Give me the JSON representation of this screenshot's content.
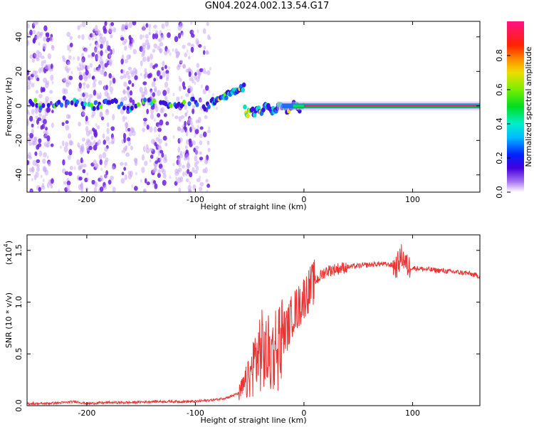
{
  "title": "GN04.2024.002.13.54.G17",
  "colors": {
    "snr_line": "#ee3333",
    "scatter_light": "#c9a6f5",
    "scatter_dark": "#6b1fe0",
    "band_core": "#ee1177"
  },
  "chart_data": [
    {
      "type": "heatmap",
      "title": "",
      "xlabel": "Height of straight line (km)",
      "ylabel": "Frequency (Hz)",
      "xlim": [
        -255,
        162
      ],
      "ylim": [
        -50,
        49
      ],
      "xticks": [
        -200,
        -100,
        0,
        100
      ],
      "xtick_labels": [
        "-200",
        "-100",
        "0",
        "100"
      ],
      "yticks": [
        -40,
        -20,
        0,
        20,
        40
      ],
      "ytick_labels": [
        "-40",
        "-20",
        "0",
        "20",
        "40"
      ],
      "colorbar": {
        "label": "Normalized spectral amplitude",
        "range": [
          0,
          1
        ],
        "ticks": [
          0.0,
          0.2,
          0.4,
          0.6,
          0.8
        ],
        "tick_labels": [
          "0.0",
          "0.2",
          "0.4",
          "0.6",
          "0.8"
        ],
        "colormap": "rainbow"
      },
      "regions": [
        {
          "x_range": [
            -255,
            -85
          ],
          "description_level": "broadband noise, amplitude 0.05-0.3, across full frequency range"
        },
        {
          "x_range": [
            -85,
            -55
          ],
          "freq_offset_hz": [
            3,
            12
          ],
          "amplitude": 0.5
        },
        {
          "x_range": [
            -55,
            0
          ],
          "freq_offset_hz": [
            -5,
            2
          ],
          "amplitude": 0.6
        },
        {
          "x_range": [
            0,
            162
          ],
          "freq_offset_hz": [
            0,
            0
          ],
          "amplitude": 1.0
        }
      ]
    },
    {
      "type": "line",
      "title": "",
      "xlabel": "Height of straight line (km)",
      "ylabel": "SNR (10 * v/v)",
      "y_multiplier_label": "(x10",
      "y_multiplier_exp": "4",
      "xlim": [
        -255,
        162
      ],
      "ylim": [
        0,
        1.65
      ],
      "xticks": [
        -200,
        -100,
        0,
        100
      ],
      "xtick_labels": [
        "-200",
        "-100",
        "0",
        "100"
      ],
      "yticks": [
        0.0,
        0.5,
        1.0,
        1.5
      ],
      "ytick_labels": [
        "0.0",
        "0.5",
        "1.0",
        "1.5"
      ],
      "series": [
        {
          "x": [
            -255,
            -240,
            -220,
            -210,
            -200,
            -180,
            -160,
            -140,
            -120,
            -100,
            -90,
            -80,
            -70,
            -60,
            -50,
            -45,
            -40,
            -35,
            -30,
            -25,
            -20,
            -15,
            -10,
            -5,
            0,
            10,
            20,
            30,
            40,
            50,
            60,
            70,
            80,
            85,
            90,
            95,
            100,
            110,
            120,
            130,
            140,
            150,
            162
          ],
          "y": [
            0.02,
            0.02,
            0.03,
            0.04,
            0.02,
            0.03,
            0.03,
            0.04,
            0.04,
            0.04,
            0.05,
            0.06,
            0.08,
            0.12,
            0.3,
            0.5,
            0.6,
            0.55,
            0.55,
            0.65,
            0.7,
            0.75,
            0.9,
            0.95,
            1.05,
            1.2,
            1.3,
            1.32,
            1.34,
            1.35,
            1.36,
            1.37,
            1.36,
            1.34,
            1.45,
            1.35,
            1.33,
            1.32,
            1.31,
            1.3,
            1.29,
            1.28,
            1.25
          ]
        }
      ]
    }
  ]
}
